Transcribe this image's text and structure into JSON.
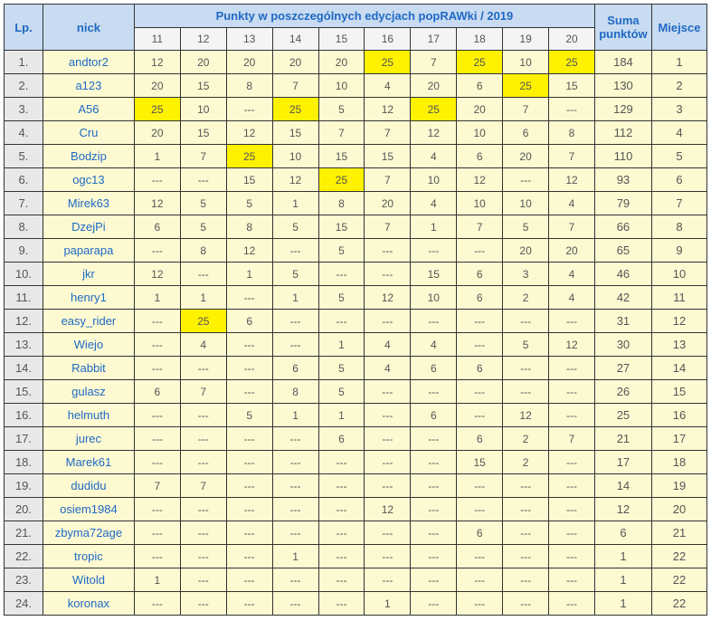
{
  "headers": {
    "lp": "Lp.",
    "nick": "nick",
    "editions": "Punkty w poszczególnych edycjach popRAWki / 2019",
    "sum": "Suma punktów",
    "place": "Miejsce",
    "cols": [
      "11",
      "12",
      "13",
      "14",
      "15",
      "16",
      "17",
      "18",
      "19",
      "20"
    ]
  },
  "rows": [
    {
      "lp": "1.",
      "nick": "andtor2",
      "pts": [
        "12",
        "20",
        "20",
        "20",
        "20",
        "25",
        "7",
        "25",
        "10",
        "25"
      ],
      "hl": [
        5,
        7,
        9
      ],
      "sum": "184",
      "place": "1"
    },
    {
      "lp": "2.",
      "nick": "a123",
      "pts": [
        "20",
        "15",
        "8",
        "7",
        "10",
        "4",
        "20",
        "6",
        "25",
        "15"
      ],
      "hl": [
        8
      ],
      "sum": "130",
      "place": "2"
    },
    {
      "lp": "3.",
      "nick": "A56",
      "pts": [
        "25",
        "10",
        "---",
        "25",
        "5",
        "12",
        "25",
        "20",
        "7",
        "---"
      ],
      "hl": [
        0,
        3,
        6
      ],
      "sum": "129",
      "place": "3"
    },
    {
      "lp": "4.",
      "nick": "Cru",
      "pts": [
        "20",
        "15",
        "12",
        "15",
        "7",
        "7",
        "12",
        "10",
        "6",
        "8"
      ],
      "hl": [],
      "sum": "112",
      "place": "4"
    },
    {
      "lp": "5.",
      "nick": "Bodzip",
      "pts": [
        "1",
        "7",
        "25",
        "10",
        "15",
        "15",
        "4",
        "6",
        "20",
        "7"
      ],
      "hl": [
        2
      ],
      "sum": "110",
      "place": "5"
    },
    {
      "lp": "6.",
      "nick": "ogc13",
      "pts": [
        "---",
        "---",
        "15",
        "12",
        "25",
        "7",
        "10",
        "12",
        "---",
        "12"
      ],
      "hl": [
        4
      ],
      "sum": "93",
      "place": "6"
    },
    {
      "lp": "7.",
      "nick": "Mirek63",
      "pts": [
        "12",
        "5",
        "5",
        "1",
        "8",
        "20",
        "4",
        "10",
        "10",
        "4"
      ],
      "hl": [],
      "sum": "79",
      "place": "7"
    },
    {
      "lp": "8.",
      "nick": "DzejPi",
      "pts": [
        "6",
        "5",
        "8",
        "5",
        "15",
        "7",
        "1",
        "7",
        "5",
        "7"
      ],
      "hl": [],
      "sum": "66",
      "place": "8"
    },
    {
      "lp": "9.",
      "nick": "paparapa",
      "pts": [
        "---",
        "8",
        "12",
        "---",
        "5",
        "---",
        "---",
        "---",
        "20",
        "20"
      ],
      "hl": [],
      "sum": "65",
      "place": "9"
    },
    {
      "lp": "10.",
      "nick": "jkr",
      "pts": [
        "12",
        "---",
        "1",
        "5",
        "---",
        "---",
        "15",
        "6",
        "3",
        "4"
      ],
      "hl": [],
      "sum": "46",
      "place": "10"
    },
    {
      "lp": "11.",
      "nick": "henry1",
      "pts": [
        "1",
        "1",
        "---",
        "1",
        "5",
        "12",
        "10",
        "6",
        "2",
        "4"
      ],
      "hl": [],
      "sum": "42",
      "place": "11"
    },
    {
      "lp": "12.",
      "nick": "easy_rider",
      "pts": [
        "---",
        "25",
        "6",
        "---",
        "---",
        "---",
        "---",
        "---",
        "---",
        "---"
      ],
      "hl": [
        1
      ],
      "sum": "31",
      "place": "12"
    },
    {
      "lp": "13.",
      "nick": "Wiejo",
      "pts": [
        "---",
        "4",
        "---",
        "---",
        "1",
        "4",
        "4",
        "---",
        "5",
        "12"
      ],
      "hl": [],
      "sum": "30",
      "place": "13"
    },
    {
      "lp": "14.",
      "nick": "Rabbit",
      "pts": [
        "---",
        "---",
        "---",
        "6",
        "5",
        "4",
        "6",
        "6",
        "---",
        "---"
      ],
      "hl": [],
      "sum": "27",
      "place": "14"
    },
    {
      "lp": "15.",
      "nick": "gulasz",
      "pts": [
        "6",
        "7",
        "---",
        "8",
        "5",
        "---",
        "---",
        "---",
        "---",
        "---"
      ],
      "hl": [],
      "sum": "26",
      "place": "15"
    },
    {
      "lp": "16.",
      "nick": "helmuth",
      "pts": [
        "---",
        "---",
        "5",
        "1",
        "1",
        "---",
        "6",
        "---",
        "12",
        "---"
      ],
      "hl": [],
      "sum": "25",
      "place": "16"
    },
    {
      "lp": "17.",
      "nick": "jurec",
      "pts": [
        "---",
        "---",
        "---",
        "---",
        "6",
        "---",
        "---",
        "6",
        "2",
        "7"
      ],
      "hl": [],
      "sum": "21",
      "place": "17"
    },
    {
      "lp": "18.",
      "nick": "Marek61",
      "pts": [
        "---",
        "---",
        "---",
        "---",
        "---",
        "---",
        "---",
        "15",
        "2",
        "---"
      ],
      "hl": [],
      "sum": "17",
      "place": "18"
    },
    {
      "lp": "19.",
      "nick": "dudidu",
      "pts": [
        "7",
        "7",
        "---",
        "---",
        "---",
        "---",
        "---",
        "---",
        "---",
        "---"
      ],
      "hl": [],
      "sum": "14",
      "place": "19"
    },
    {
      "lp": "20.",
      "nick": "osiem1984",
      "pts": [
        "---",
        "---",
        "---",
        "---",
        "---",
        "12",
        "---",
        "---",
        "---",
        "---"
      ],
      "hl": [],
      "sum": "12",
      "place": "20"
    },
    {
      "lp": "21.",
      "nick": "zbyma72age",
      "pts": [
        "---",
        "---",
        "---",
        "---",
        "---",
        "---",
        "---",
        "6",
        "---",
        "---"
      ],
      "hl": [],
      "sum": "6",
      "place": "21"
    },
    {
      "lp": "22.",
      "nick": "tropic",
      "pts": [
        "---",
        "---",
        "---",
        "1",
        "---",
        "---",
        "---",
        "---",
        "---",
        "---"
      ],
      "hl": [],
      "sum": "1",
      "place": "22"
    },
    {
      "lp": "23.",
      "nick": "Witold",
      "pts": [
        "1",
        "---",
        "---",
        "---",
        "---",
        "---",
        "---",
        "---",
        "---",
        "---"
      ],
      "hl": [],
      "sum": "1",
      "place": "22"
    },
    {
      "lp": "24.",
      "nick": "koronax",
      "pts": [
        "---",
        "---",
        "---",
        "---",
        "---",
        "1",
        "---",
        "---",
        "---",
        "---"
      ],
      "hl": [],
      "sum": "1",
      "place": "22"
    }
  ]
}
